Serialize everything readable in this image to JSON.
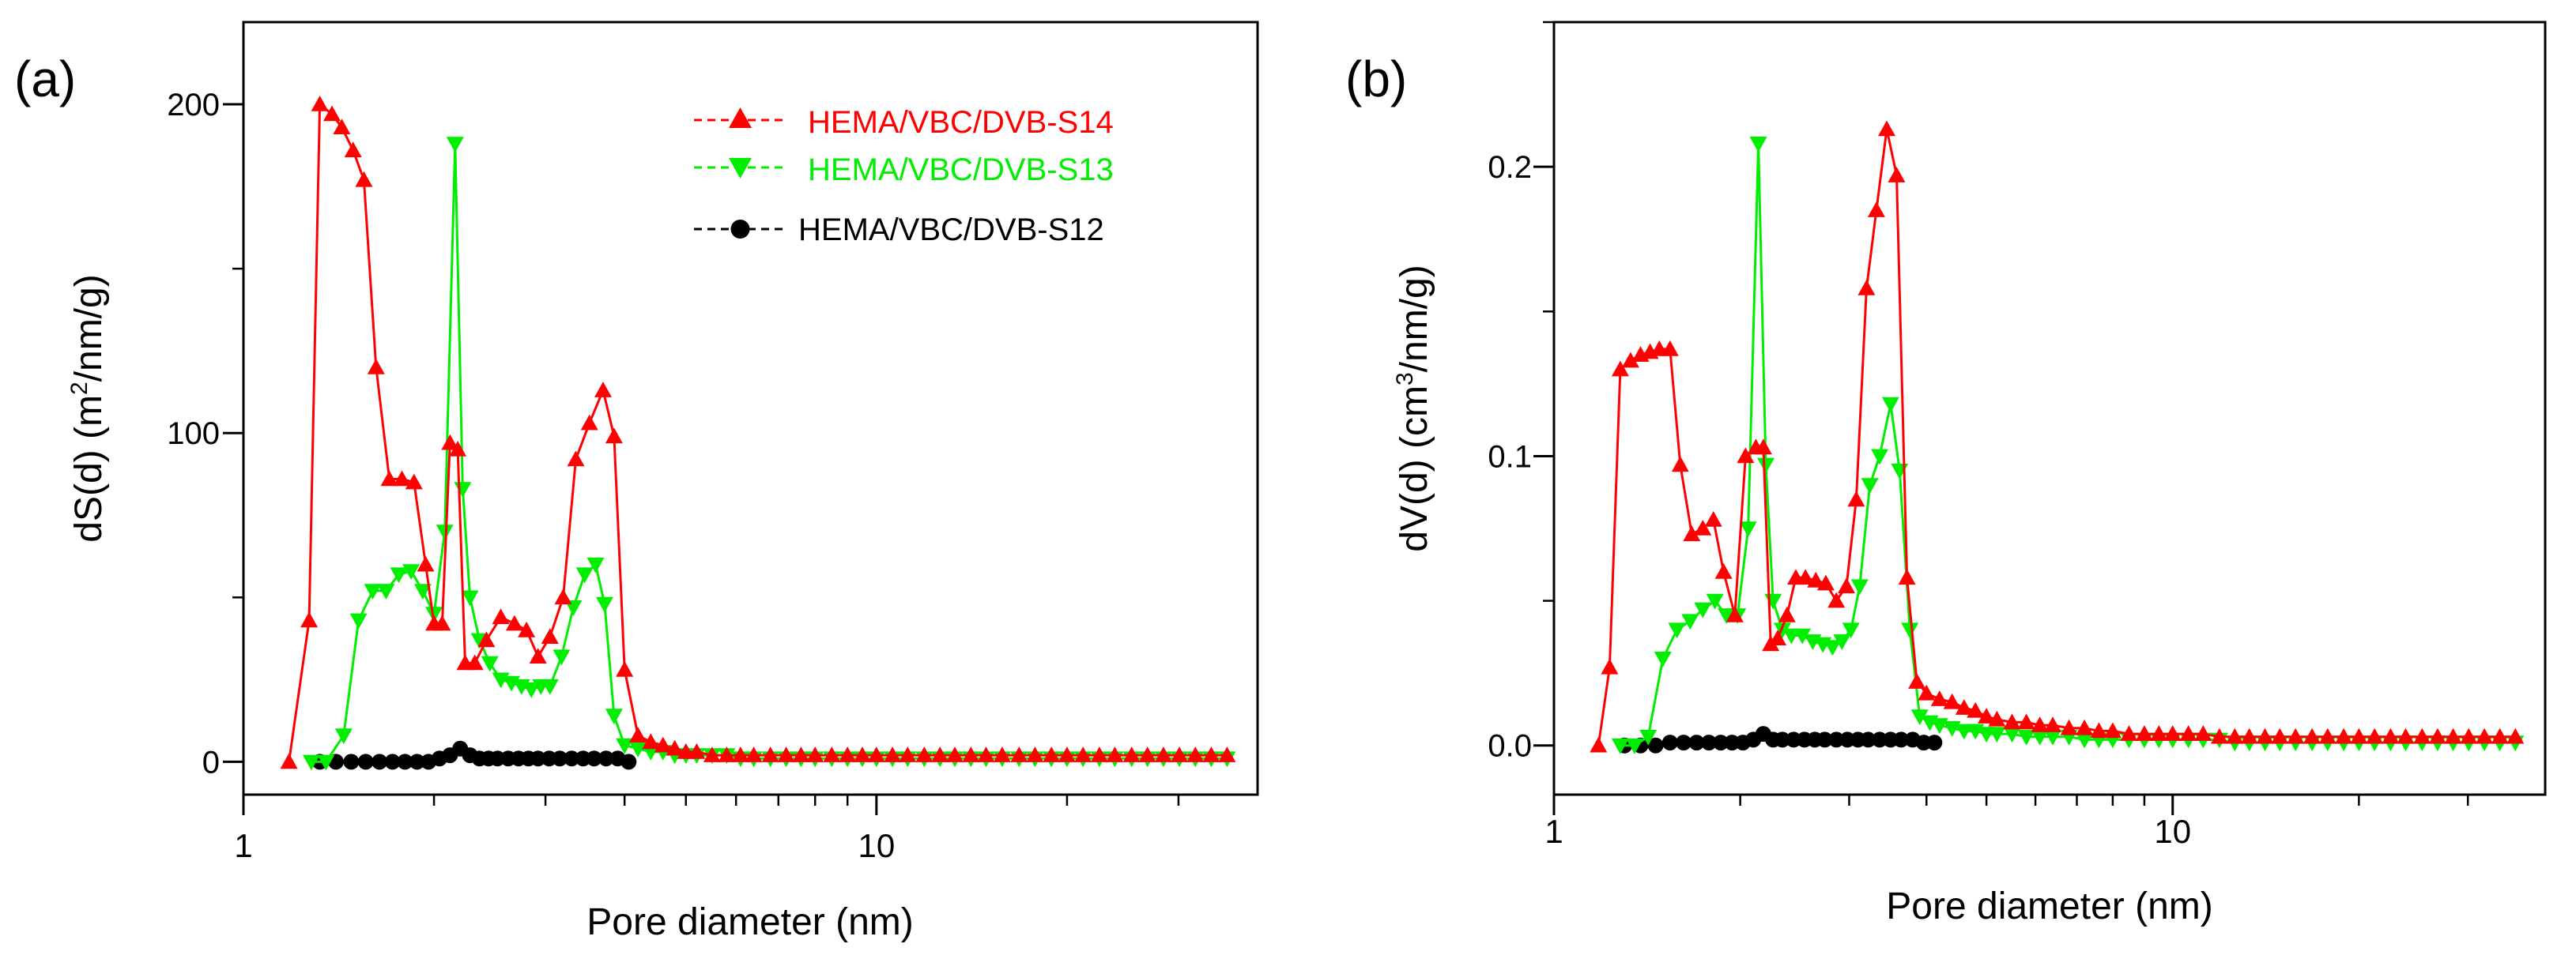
{
  "chart_data": [
    {
      "panel_label": "(a)",
      "type": "line",
      "x_scale": "log",
      "xlabel": "Pore diameter (nm)",
      "ylabel_parts": [
        "dS(d) (m",
        "2",
        "/nm/g)"
      ],
      "xlim": [
        1,
        40
      ],
      "ylim": [
        -10,
        225
      ],
      "x_tick_values": [
        1,
        10
      ],
      "x_tick_labels": [
        "1",
        "10"
      ],
      "y_tick_values": [
        0,
        100,
        200
      ],
      "y_tick_labels": [
        "0",
        "100",
        "200"
      ],
      "legend": {
        "placement": "top-right",
        "entries": [
          {
            "marker_key": "s14",
            "label": "HEMA/VBC/DVB-S14"
          },
          {
            "marker_key": "s13",
            "label": "HEMA/VBC/DVB-S13"
          },
          {
            "marker_key": "s12",
            "label": "HEMA/VBC/DVB-S12"
          }
        ]
      },
      "series": [
        {
          "key": "s14",
          "name": "HEMA/VBC/DVB-S14",
          "color": "#ff0000",
          "marker": "triangle-up",
          "x": [
            1.18,
            1.27,
            1.32,
            1.38,
            1.43,
            1.49,
            1.55,
            1.62,
            1.7,
            1.78,
            1.86,
            1.94,
            2.0,
            2.06,
            2.12,
            2.18,
            2.24,
            2.32,
            2.42,
            2.55,
            2.68,
            2.8,
            2.92,
            3.05,
            3.2,
            3.35,
            3.52,
            3.7,
            3.85,
            4.0,
            4.2,
            4.4,
            4.6,
            4.8,
            5.0,
            5.2,
            5.5,
            5.8,
            6.1,
            6.4,
            6.8,
            7.2,
            7.6,
            8.0,
            8.5,
            9.0,
            9.5,
            10.0,
            10.6,
            11.2,
            11.9,
            12.6,
            13.3,
            14.1,
            14.9,
            15.8,
            16.8,
            17.8,
            18.9,
            20.0,
            21.2,
            22.5,
            23.8,
            25.3,
            26.8,
            28.4,
            30.1,
            31.9,
            33.8,
            35.8
          ],
          "y": [
            0,
            43,
            200,
            197,
            193,
            186,
            177,
            120,
            86,
            86,
            85,
            60,
            42,
            42,
            97,
            95,
            30,
            30,
            37,
            44,
            42,
            40,
            32,
            38,
            50,
            92,
            103,
            113,
            99,
            28,
            8,
            6,
            5,
            4,
            3,
            3,
            2,
            2,
            2,
            2,
            2,
            2,
            2,
            2,
            2,
            2,
            2,
            2,
            2,
            2,
            2,
            2,
            2,
            2,
            2,
            2,
            2,
            2,
            2,
            2,
            2,
            2,
            2,
            2,
            2,
            2,
            2,
            2,
            2,
            2
          ]
        },
        {
          "key": "s13",
          "name": "HEMA/VBC/DVB-S13",
          "color": "#00ee00",
          "marker": "triangle-down",
          "x": [
            1.28,
            1.35,
            1.44,
            1.52,
            1.6,
            1.68,
            1.76,
            1.84,
            1.92,
            2.0,
            2.08,
            2.16,
            2.22,
            2.28,
            2.36,
            2.45,
            2.55,
            2.65,
            2.75,
            2.85,
            2.95,
            3.05,
            3.18,
            3.32,
            3.46,
            3.6,
            3.72,
            3.85,
            4.0,
            4.2,
            4.4,
            4.6,
            4.8,
            5.0,
            5.2,
            5.5,
            5.8,
            6.1,
            6.4,
            6.8,
            7.2,
            7.6,
            8.0,
            8.5,
            9.0,
            9.5,
            10.0,
            10.6,
            11.2,
            11.9,
            12.6,
            13.3,
            14.1,
            14.9,
            15.8,
            16.8,
            17.8,
            18.9,
            20.0,
            21.2,
            22.5,
            23.8,
            25.3,
            26.8,
            28.4,
            30.1,
            31.9,
            33.8,
            35.8
          ],
          "y": [
            0,
            0,
            8,
            43,
            52,
            52,
            57,
            58,
            52,
            45,
            70,
            188,
            83,
            50,
            37,
            30,
            25,
            24,
            23,
            22,
            23,
            23,
            32,
            47,
            57,
            60,
            48,
            14,
            5,
            4,
            3,
            3,
            2,
            2,
            2,
            2,
            2,
            1,
            1,
            1,
            1,
            1,
            1,
            1,
            1,
            1,
            1,
            1,
            1,
            1,
            1,
            1,
            1,
            1,
            1,
            1,
            1,
            1,
            1,
            1,
            1,
            1,
            1,
            1,
            1,
            1,
            1,
            1,
            1
          ]
        },
        {
          "key": "s12",
          "name": "HEMA/VBC/DVB-S12",
          "color": "#000000",
          "marker": "circle",
          "x": [
            1.32,
            1.4,
            1.48,
            1.56,
            1.64,
            1.72,
            1.8,
            1.88,
            1.96,
            2.04,
            2.12,
            2.2,
            2.28,
            2.36,
            2.44,
            2.52,
            2.62,
            2.72,
            2.82,
            2.92,
            3.04,
            3.16,
            3.3,
            3.44,
            3.58,
            3.74,
            3.9,
            4.06
          ],
          "y": [
            0,
            0,
            0,
            0,
            0,
            0,
            0,
            0,
            0,
            1,
            2,
            4,
            2,
            1,
            1,
            1,
            1,
            1,
            1,
            1,
            1,
            1,
            1,
            1,
            1,
            1,
            1,
            0
          ]
        }
      ]
    },
    {
      "panel_label": "(b)",
      "type": "line",
      "x_scale": "log",
      "xlabel": "Pore diameter (nm)",
      "ylabel_parts": [
        "dV(d) (cm",
        "3",
        "/nm/g)"
      ],
      "xlim": [
        1,
        40
      ],
      "ylim": [
        -0.017,
        0.25
      ],
      "x_tick_values": [
        1,
        10
      ],
      "x_tick_labels": [
        "1",
        "10"
      ],
      "y_tick_values": [
        0,
        0.1,
        0.2
      ],
      "y_tick_labels": [
        "0.0",
        "0.1",
        "0.2"
      ],
      "series": [
        {
          "key": "s14",
          "name": "HEMA/VBC/DVB-S14",
          "color": "#ff0000",
          "marker": "triangle-up",
          "x": [
            1.18,
            1.23,
            1.28,
            1.33,
            1.38,
            1.43,
            1.48,
            1.54,
            1.6,
            1.67,
            1.74,
            1.81,
            1.88,
            1.96,
            2.04,
            2.12,
            2.18,
            2.24,
            2.3,
            2.38,
            2.46,
            2.55,
            2.65,
            2.75,
            2.86,
            2.97,
            3.08,
            3.2,
            3.32,
            3.45,
            3.58,
            3.72,
            3.86,
            4.0,
            4.2,
            4.4,
            4.6,
            4.8,
            5.0,
            5.2,
            5.5,
            5.8,
            6.1,
            6.4,
            6.8,
            7.2,
            7.6,
            8.0,
            8.5,
            9.0,
            9.5,
            10.0,
            10.6,
            11.2,
            11.9,
            12.6,
            13.3,
            14.1,
            14.9,
            15.8,
            16.8,
            17.8,
            18.9,
            20.0,
            21.2,
            22.5,
            23.8,
            25.3,
            26.8,
            28.4,
            30.1,
            31.9,
            33.8,
            35.8
          ],
          "y": [
            0,
            0.027,
            0.13,
            0.133,
            0.135,
            0.136,
            0.137,
            0.137,
            0.097,
            0.073,
            0.075,
            0.078,
            0.06,
            0.045,
            0.1,
            0.103,
            0.103,
            0.035,
            0.037,
            0.045,
            0.058,
            0.058,
            0.057,
            0.056,
            0.05,
            0.055,
            0.085,
            0.158,
            0.185,
            0.213,
            0.197,
            0.058,
            0.022,
            0.018,
            0.016,
            0.015,
            0.013,
            0.012,
            0.01,
            0.009,
            0.008,
            0.008,
            0.007,
            0.007,
            0.006,
            0.006,
            0.005,
            0.005,
            0.004,
            0.004,
            0.004,
            0.004,
            0.004,
            0.004,
            0.003,
            0.003,
            0.003,
            0.003,
            0.003,
            0.003,
            0.003,
            0.003,
            0.003,
            0.003,
            0.003,
            0.003,
            0.003,
            0.003,
            0.003,
            0.003,
            0.003,
            0.003,
            0.003,
            0.003
          ]
        },
        {
          "key": "s13",
          "name": "HEMA/VBC/DVB-S13",
          "color": "#00ee00",
          "marker": "triangle-down",
          "x": [
            1.28,
            1.35,
            1.42,
            1.5,
            1.58,
            1.66,
            1.74,
            1.82,
            1.9,
            1.98,
            2.06,
            2.14,
            2.2,
            2.26,
            2.34,
            2.42,
            2.52,
            2.62,
            2.72,
            2.82,
            2.92,
            3.02,
            3.12,
            3.24,
            3.36,
            3.5,
            3.62,
            3.76,
            3.9,
            4.05,
            4.2,
            4.4,
            4.6,
            4.8,
            5.0,
            5.2,
            5.5,
            5.8,
            6.1,
            6.4,
            6.8,
            7.2,
            7.6,
            8.0,
            8.5,
            9.0,
            9.5,
            10.0,
            10.6,
            11.2,
            11.9,
            12.6,
            13.3,
            14.1,
            14.9,
            15.8,
            16.8,
            17.8,
            18.9,
            20.0,
            21.2,
            22.5,
            23.8,
            25.3,
            26.8,
            28.4,
            30.1,
            31.9,
            33.8,
            35.8
          ],
          "y": [
            0,
            0,
            0.003,
            0.03,
            0.04,
            0.043,
            0.047,
            0.05,
            0.045,
            0.045,
            0.075,
            0.208,
            0.097,
            0.05,
            0.04,
            0.038,
            0.038,
            0.036,
            0.035,
            0.034,
            0.036,
            0.04,
            0.055,
            0.09,
            0.1,
            0.118,
            0.095,
            0.04,
            0.01,
            0.008,
            0.007,
            0.006,
            0.005,
            0.005,
            0.004,
            0.004,
            0.004,
            0.003,
            0.003,
            0.003,
            0.003,
            0.002,
            0.002,
            0.002,
            0.002,
            0.002,
            0.002,
            0.002,
            0.002,
            0.002,
            0.002,
            0.001,
            0.001,
            0.001,
            0.001,
            0.001,
            0.001,
            0.001,
            0.001,
            0.001,
            0.001,
            0.001,
            0.001,
            0.001,
            0.001,
            0.001,
            0.001,
            0.001,
            0.001,
            0.001
          ]
        },
        {
          "key": "s12",
          "name": "HEMA/VBC/DVB-S12",
          "color": "#000000",
          "marker": "circle",
          "x": [
            1.3,
            1.38,
            1.46,
            1.54,
            1.62,
            1.7,
            1.78,
            1.86,
            1.94,
            2.02,
            2.1,
            2.18,
            2.26,
            2.34,
            2.44,
            2.54,
            2.64,
            2.74,
            2.86,
            2.98,
            3.1,
            3.22,
            3.36,
            3.5,
            3.64,
            3.8,
            3.96,
            4.12
          ],
          "y": [
            0,
            0,
            0,
            0.001,
            0.001,
            0.001,
            0.001,
            0.001,
            0.001,
            0.001,
            0.002,
            0.004,
            0.002,
            0.002,
            0.002,
            0.002,
            0.002,
            0.002,
            0.002,
            0.002,
            0.002,
            0.002,
            0.002,
            0.002,
            0.002,
            0.002,
            0.001,
            0.001
          ]
        }
      ]
    }
  ]
}
